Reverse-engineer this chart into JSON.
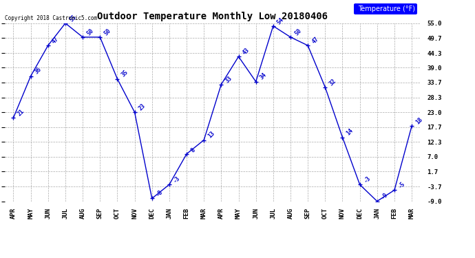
{
  "title": "Outdoor Temperature Monthly Low 20180406",
  "copyright": "Copyright 2018 Castronic5.com",
  "legend_label": "Temperature (°F)",
  "x_labels": [
    "APR",
    "MAY",
    "JUN",
    "JUL",
    "AUG",
    "SEP",
    "OCT",
    "NOV",
    "DEC",
    "JAN",
    "FEB",
    "MAR",
    "APR",
    "MAY",
    "JUN",
    "JUL",
    "AUG",
    "SEP",
    "OCT",
    "NOV",
    "DEC",
    "JAN",
    "FEB",
    "MAR"
  ],
  "y_values": [
    21,
    36,
    47,
    55,
    50,
    50,
    35,
    23,
    -8,
    -3,
    8,
    13,
    33,
    43,
    34,
    54,
    50,
    47,
    32,
    14,
    -3,
    -9,
    -5,
    18
  ],
  "y_ticks": [
    55.0,
    49.7,
    44.3,
    39.0,
    33.7,
    28.3,
    23.0,
    17.7,
    12.3,
    7.0,
    1.7,
    -3.7,
    -9.0
  ],
  "y_min": -9.0,
  "y_max": 55.0,
  "line_color": "#0000cc",
  "marker": "+",
  "marker_size": 4,
  "marker_lw": 1.0,
  "line_width": 1.0,
  "bg_color": "#ffffff",
  "grid_color": "#aaaaaa",
  "title_fontsize": 10,
  "tick_fontsize": 6.5,
  "annot_fontsize": 6,
  "copyright_fontsize": 5.5,
  "legend_fontsize": 7
}
